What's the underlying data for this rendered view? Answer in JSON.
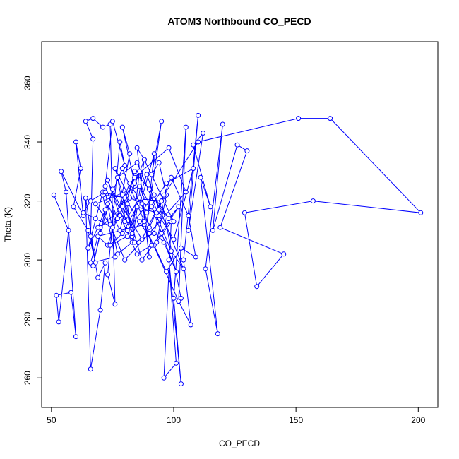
{
  "chart_data": {
    "type": "line",
    "title": "ATOM3 Northbound CO_PECD",
    "xlabel": "CO_PECD",
    "ylabel": "Theta (K)",
    "xlim": [
      46,
      208
    ],
    "ylim": [
      250,
      374
    ],
    "xticks": [
      50,
      100,
      150,
      200
    ],
    "yticks": [
      260,
      280,
      300,
      320,
      340,
      360
    ],
    "x_tick_labels": [
      "50",
      "100",
      "150",
      "200"
    ],
    "y_tick_labels": [
      "260",
      "280",
      "300",
      "320",
      "340",
      "360"
    ],
    "grid": false,
    "legend": "none",
    "color": "#0000ff",
    "marker": "open-circle",
    "series": [
      {
        "x": [
          51,
          57,
          53,
          52,
          58,
          60,
          56,
          54,
          63,
          60,
          62,
          59,
          65,
          68,
          64,
          66,
          70,
          72,
          69,
          66,
          67,
          64,
          67,
          71,
          74,
          76,
          73,
          78,
          80,
          75,
          72,
          77,
          82,
          79,
          84,
          86,
          83,
          81,
          88,
          85,
          90,
          87,
          92,
          89,
          95,
          91,
          94,
          97,
          93,
          99,
          96,
          101,
          98,
          103,
          100,
          105,
          102,
          107,
          104,
          110,
          106,
          112,
          108,
          115,
          111,
          118,
          113,
          120,
          116,
          126,
          130,
          119,
          145,
          134,
          129,
          157,
          201,
          164,
          151,
          110,
          96,
          87,
          79,
          70,
          66,
          76,
          71,
          95,
          103,
          102,
          88,
          69,
          73,
          78,
          84,
          98,
          105,
          90,
          80,
          74,
          68,
          86,
          93,
          99,
          104,
          92,
          81,
          77,
          85,
          94,
          100,
          108,
          97,
          89,
          83,
          75,
          70,
          67,
          72,
          79,
          88,
          96,
          101,
          91,
          82,
          76,
          87,
          95,
          102,
          98,
          90,
          84,
          78,
          73,
          69,
          65,
          71,
          80,
          86,
          92,
          97,
          103,
          109,
          106,
          99,
          93,
          85,
          79,
          74,
          81,
          89,
          94,
          100,
          96,
          88,
          83,
          77,
          72,
          66,
          63,
          68,
          75,
          82,
          87,
          91,
          85,
          78,
          73,
          80,
          86,
          90,
          95,
          92,
          84,
          79
        ],
        "y": [
          322,
          310,
          279,
          288,
          289,
          274,
          323,
          330,
          315,
          340,
          331,
          318,
          310,
          299,
          321,
          263,
          283,
          299,
          294,
          308,
          341,
          347,
          348,
          345,
          346,
          285,
          295,
          340,
          332,
          347,
          325,
          314,
          336,
          345,
          326,
          330,
          308,
          319,
          334,
          338,
          301,
          321,
          336,
          312,
          347,
          329,
          333,
          322,
          306,
          313,
          260,
          265,
          300,
          258,
          287,
          345,
          286,
          278,
          300,
          349,
          310,
          343,
          339,
          318,
          328,
          275,
          297,
          346,
          310,
          339,
          337,
          311,
          302,
          291,
          316,
          320,
          316,
          348,
          348,
          340,
          322,
          307,
          318,
          311,
          299,
          301,
          322,
          320,
          287,
          286,
          312,
          308,
          305,
          317,
          328,
          338,
          323,
          309,
          300,
          312,
          319,
          325,
          315,
          303,
          297,
          322,
          310,
          328,
          333,
          315,
          307,
          331,
          326,
          316,
          309,
          324,
          309,
          298,
          317,
          331,
          313,
          306,
          296,
          318,
          321,
          331,
          300,
          309,
          318,
          314,
          324,
          330,
          310,
          319,
          311,
          304,
          323,
          321,
          313,
          305,
          296,
          304,
          301,
          315,
          328,
          316,
          318,
          309,
          305,
          308,
          329,
          317,
          313,
          320,
          334,
          306,
          302,
          323,
          320,
          316,
          314,
          311,
          326,
          319,
          305,
          302,
          315,
          327,
          313,
          321,
          311,
          320,
          309,
          306,
          322
        ]
      }
    ]
  }
}
